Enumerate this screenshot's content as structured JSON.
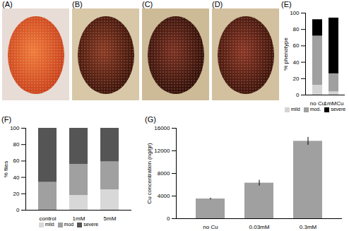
{
  "images": [
    {
      "label": "(A)"
    },
    {
      "label": "(B)"
    },
    {
      "label": "(C)"
    },
    {
      "label": "(D)"
    }
  ],
  "chart_data": [
    {
      "type": "bar",
      "stacked": true,
      "title": "(E)",
      "y_label": "% phenotype",
      "categories": [
        "no Cu",
        "1mMCu"
      ],
      "series": [
        {
          "name": "mild",
          "color": "#d4d4d4",
          "values": [
            12,
            4
          ]
        },
        {
          "name": "mod.",
          "color": "#a0a0a0",
          "values": [
            60,
            22
          ]
        },
        {
          "name": "severe",
          "color": "#000000",
          "values": [
            20,
            68
          ]
        }
      ],
      "ylim": [
        0,
        100
      ],
      "yticks": [
        0,
        20,
        40,
        60,
        80,
        100
      ],
      "legend": "bottom"
    },
    {
      "type": "bar",
      "stacked": true,
      "title": "(F)",
      "y_label": "% flies",
      "categories": [
        "control",
        "1mM",
        "5mM"
      ],
      "series": [
        {
          "name": "mild",
          "color": "#d8d8d8",
          "values": [
            0,
            18,
            25
          ]
        },
        {
          "name": "mod",
          "color": "#a0a0a0",
          "values": [
            34,
            38,
            34
          ]
        },
        {
          "name": "severe",
          "color": "#555555",
          "values": [
            66,
            44,
            41
          ]
        }
      ],
      "ylim": [
        0,
        100
      ],
      "yticks": [
        0,
        20,
        40,
        60,
        80,
        100
      ],
      "legend": "bottom"
    },
    {
      "type": "bar",
      "title": "(G)",
      "y_label": "Cu concentration (ng/gr)",
      "categories": [
        "no Cu",
        "0.03mM",
        "0.3mM"
      ],
      "values": [
        3500,
        6300,
        13700
      ],
      "errors": [
        150,
        500,
        700
      ],
      "color": "#a0a0a0",
      "ylim": [
        0,
        16000
      ],
      "yticks": [
        0,
        4000,
        8000,
        12000,
        16000
      ]
    }
  ]
}
